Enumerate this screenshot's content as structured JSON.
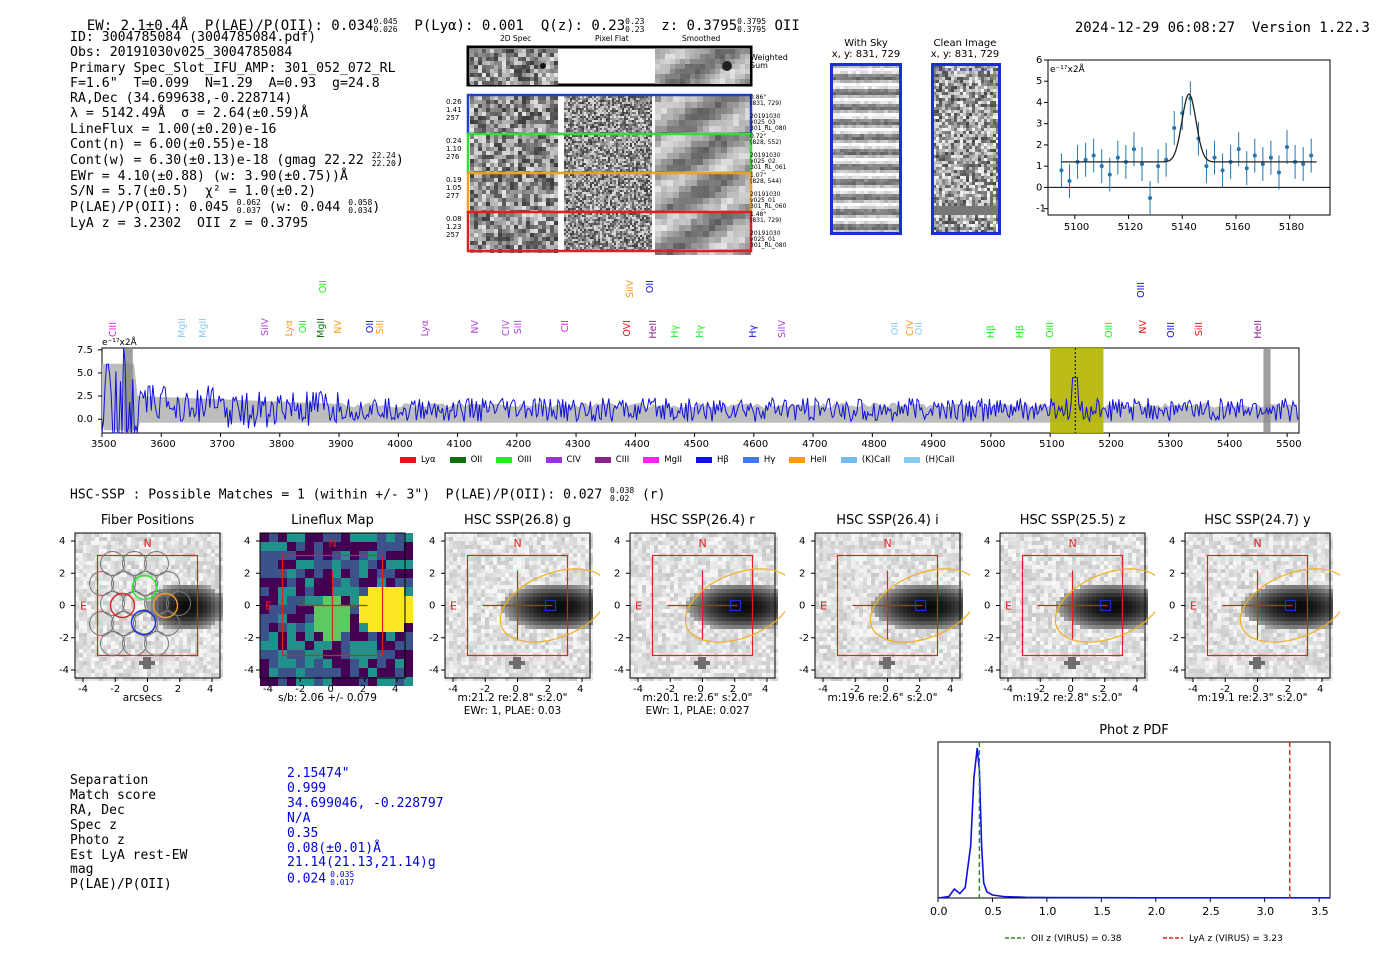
{
  "header": {
    "ew_label": "EW: 2.1±0.4Å",
    "plae_label": "P(LAE)/P(OII): 0.034",
    "plae_hi": "0.045",
    "plae_lo": "0.026",
    "plya_label": "P(Lyα): 0.001",
    "qz_label": "Q(z): 0.23",
    "qz_hi": "0.23",
    "qz_lo": "0.23",
    "z_label": "z: 0.3795",
    "z_hi": "0.3795",
    "z_lo": "0.3795",
    "z_line": "OII",
    "timestamp": "2024-12-29 06:08:27",
    "version": "Version 1.22.3"
  },
  "info": {
    "id": "ID: 3004785084 (3004785084.pdf)",
    "obs": "Obs: 20191030v025_3004785084",
    "primary": "Primary Spec_Slot_IFU_AMP: 301_052_072_RL",
    "params": "F=1.6\"  T=0.099  N=1.29  A=0.93  g=24.8",
    "radec": "RA,Dec (34.699638,-0.228714)",
    "lambda": "λ = 5142.49Å  σ = 2.64(±0.59)Å",
    "lineflux": "LineFlux = 1.00(±0.20)e-16",
    "contn": "Cont(n) = 6.00(±0.55)e-18",
    "contw": "Cont(w) = 6.30(±0.13)e-18 (gmag 22.22",
    "contw_hi": "22.24",
    "contw_lo": "22.20",
    "ewr": "EWr = 4.10(±0.88) (w: 3.90(±0.75))Å",
    "sn": "S/N = 5.7(±0.5)  χ² = 1.0(±0.2)",
    "plae": "P(LAE)/P(OII): 0.045",
    "plae_hi": "0.062",
    "plae_lo": "0.037",
    "plae_w": "(w: 0.044",
    "plae_w_hi": "0.058",
    "plae_w_lo": "0.034",
    "lya_z": "LyA z = 3.2302  OII z = 0.3795"
  },
  "cutouts": {
    "col_headers": [
      "2D Spec",
      "Pixel Flat",
      "Smoothed"
    ],
    "weighted": "Weighted Sum",
    "rows": [
      {
        "left": [
          "0.26",
          "1.41",
          "257"
        ],
        "right": [
          "0.86\"",
          "(831, 729)",
          "",
          "20191030",
          "v025_03",
          "301_RL_080"
        ],
        "color": "#1f3fd0"
      },
      {
        "left": [
          "0.24",
          "1.10",
          "276"
        ],
        "right": [
          "0.72\"",
          "(828, 552)",
          "",
          "20191030",
          "v025_02",
          "301_RL_061"
        ],
        "color": "#33dd33"
      },
      {
        "left": [
          "0.19",
          "1.05",
          "277"
        ],
        "right": [
          "1.07\"",
          "(828, 544)",
          "",
          "20191030",
          "v025_01",
          "301_RL_060"
        ],
        "color": "#f0a020"
      },
      {
        "left": [
          "0.08",
          "1.23",
          "257"
        ],
        "right": [
          "1.48\"",
          "(831, 729)",
          "",
          "20191030",
          "v025_01",
          "301_RL_080"
        ],
        "color": "#e02020"
      }
    ]
  },
  "sky": {
    "with_sky_title": "With Sky",
    "with_sky_coord": "x, y: 831, 729",
    "clean_title": "Clean Image",
    "clean_coord": "x, y: 831, 729"
  },
  "zoom_plot": {
    "unit": "e⁻¹⁷x2Å",
    "xticks": [
      "5100",
      "5120",
      "5140",
      "5160",
      "5180"
    ],
    "yticks": [
      "6",
      "5",
      "4",
      "3",
      "2",
      "1",
      "0",
      "-1"
    ]
  },
  "full_spectrum": {
    "unit": "e⁻¹⁷x2Å",
    "xticks": [
      "3500",
      "3600",
      "3700",
      "3800",
      "3900",
      "4000",
      "4100",
      "4200",
      "4300",
      "4400",
      "4500",
      "4600",
      "4700",
      "4800",
      "4900",
      "5000",
      "5100",
      "5200",
      "5300",
      "5400",
      "5500"
    ],
    "yticks": [
      "7.5",
      "5.0",
      "2.5",
      "0.0"
    ],
    "legend": [
      {
        "label": "Lyα",
        "color": "#e8101a"
      },
      {
        "label": "OII",
        "color": "#107010"
      },
      {
        "label": "OIII",
        "color": "#22ee22"
      },
      {
        "label": "CIV",
        "color": "#9933dd"
      },
      {
        "label": "CIII",
        "color": "#882288"
      },
      {
        "label": "MgII",
        "color": "#ff22ee"
      },
      {
        "label": "Hβ",
        "color": "#1010ee"
      },
      {
        "label": "Hγ",
        "color": "#4477ee"
      },
      {
        "label": "HeII",
        "color": "#ff9911"
      },
      {
        "label": "(K)CaII",
        "color": "#77bbee"
      },
      {
        "label": "(H)CaII",
        "color": "#88ccee"
      }
    ],
    "line_labels": [
      {
        "t": "CIII",
        "c": "#dd22dd",
        "x": 108,
        "y": 322
      },
      {
        "t": "MgII",
        "c": "#88ccee",
        "x": 177,
        "y": 318
      },
      {
        "t": "MgII",
        "c": "#88ccee",
        "x": 198,
        "y": 318
      },
      {
        "t": "SiIV",
        "c": "#aa44dd",
        "x": 260,
        "y": 318
      },
      {
        "t": "Lyα",
        "c": "#ff9911",
        "x": 284,
        "y": 320
      },
      {
        "t": "OII",
        "c": "#22ee22",
        "x": 298,
        "y": 320
      },
      {
        "t": "MgII",
        "c": "#107010",
        "x": 316,
        "y": 318
      },
      {
        "t": "OII",
        "c": "#22ee22",
        "x": 318,
        "y": 280
      },
      {
        "t": "NV",
        "c": "#ff9911",
        "x": 333,
        "y": 320
      },
      {
        "t": "OII",
        "c": "#1010ee",
        "x": 365,
        "y": 320
      },
      {
        "t": "SiII",
        "c": "#ff9911",
        "x": 375,
        "y": 320
      },
      {
        "t": "Lyα",
        "c": "#aa44dd",
        "x": 420,
        "y": 320
      },
      {
        "t": "NV",
        "c": "#aa44dd",
        "x": 470,
        "y": 320
      },
      {
        "t": "CIV",
        "c": "#aa44dd",
        "x": 501,
        "y": 320
      },
      {
        "t": "SiII",
        "c": "#aa44dd",
        "x": 513,
        "y": 320
      },
      {
        "t": "CII",
        "c": "#dd22dd",
        "x": 560,
        "y": 320
      },
      {
        "t": "SiIV",
        "c": "#ff9911",
        "x": 625,
        "y": 280
      },
      {
        "t": "OII",
        "c": "#1010ee",
        "x": 645,
        "y": 280
      },
      {
        "t": "OVI",
        "c": "#e8101a",
        "x": 622,
        "y": 320
      },
      {
        "t": "HeII",
        "c": "#882288",
        "x": 648,
        "y": 320
      },
      {
        "t": "Hγ",
        "c": "#22ee22",
        "x": 670,
        "y": 325
      },
      {
        "t": "Hγ",
        "c": "#22ee22",
        "x": 695,
        "y": 325
      },
      {
        "t": "Hγ",
        "c": "#1010ee",
        "x": 748,
        "y": 325
      },
      {
        "t": "SiIV",
        "c": "#aa44dd",
        "x": 777,
        "y": 320
      },
      {
        "t": "OII",
        "c": "#88ccee",
        "x": 890,
        "y": 322
      },
      {
        "t": "CIV",
        "c": "#ff9911",
        "x": 905,
        "y": 320
      },
      {
        "t": "OII",
        "c": "#88ccee",
        "x": 914,
        "y": 322
      },
      {
        "t": "Hβ",
        "c": "#22ee22",
        "x": 986,
        "y": 325
      },
      {
        "t": "Hβ",
        "c": "#22ee22",
        "x": 1015,
        "y": 325
      },
      {
        "t": "OIII",
        "c": "#22ee22",
        "x": 1045,
        "y": 322
      },
      {
        "t": "OIII",
        "c": "#22ee22",
        "x": 1104,
        "y": 322
      },
      {
        "t": "OIII",
        "c": "#1010ee",
        "x": 1136,
        "y": 282
      },
      {
        "t": "NV",
        "c": "#e8101a",
        "x": 1138,
        "y": 320
      },
      {
        "t": "OIII",
        "c": "#1010ee",
        "x": 1166,
        "y": 322
      },
      {
        "t": "SiII",
        "c": "#e8101a",
        "x": 1194,
        "y": 322
      },
      {
        "t": "HeII",
        "c": "#882288",
        "x": 1253,
        "y": 320
      }
    ]
  },
  "hsc": {
    "heading": "HSC-SSP : Possible Matches = 1 (within +/- 3\")  P(LAE)/P(OII): 0.027",
    "heading_hi": "0.038",
    "heading_lo": "0.02",
    "heading_band": "(r)",
    "panels": [
      {
        "title": "Fiber Positions",
        "caption": "arcsecs",
        "caption2": ""
      },
      {
        "title": "Lineflux Map",
        "caption": "s/b: 2.06 +/- 0.079",
        "caption2": ""
      },
      {
        "title": "HSC SSP(26.8) g",
        "caption": "m:21.2  re:2.8\"  s:2.0\"",
        "caption2": "EWr: 1, PLAE: 0.03"
      },
      {
        "title": "HSC SSP(26.4) r",
        "caption": "m:20.1  re:2.6\"  s:2.0\"",
        "caption2": "EWr: 1, PLAE: 0.027"
      },
      {
        "title": "HSC SSP(26.4) i",
        "caption": "m:19.6  re:2.6\"  s:2.0\"",
        "caption2": ""
      },
      {
        "title": "HSC SSP(25.5) z",
        "caption": "m:19.2  re:2.8\"  s:2.0\"",
        "caption2": ""
      },
      {
        "title": "HSC SSP(24.7) y",
        "caption": "m:19.1  re:2.3\"  s:2.0\"",
        "caption2": ""
      }
    ],
    "compass_n": "N",
    "compass_e": "E",
    "ticks": [
      "-4",
      "-2",
      "0",
      "2",
      "4"
    ],
    "yticks": [
      "4",
      "2",
      "0",
      "-2",
      "-4"
    ]
  },
  "match": {
    "labels": [
      "Separation",
      "Match score",
      "RA, Dec",
      "Spec z",
      "Photo z",
      "Est LyA rest-EW",
      "mag",
      "P(LAE)/P(OII)"
    ],
    "values": [
      "2.15474\"",
      "0.999",
      "34.699046, -0.228797",
      "N/A",
      "0.35",
      "0.08(±0.01)Å",
      "21.14(21.13,21.14)g",
      "0.024"
    ],
    "plae_hi": "0.035",
    "plae_lo": "0.017"
  },
  "chart_data": [
    {
      "type": "line",
      "title": "Phot z PDF",
      "xlabel": "",
      "ylabel": "",
      "xlim": [
        0.0,
        3.6
      ],
      "xticks": [
        "0.0",
        "0.5",
        "1.0",
        "1.5",
        "2.0",
        "2.5",
        "3.0",
        "3.5"
      ],
      "series": [
        {
          "name": "PDF",
          "x": [
            0.0,
            0.1,
            0.15,
            0.2,
            0.25,
            0.3,
            0.33,
            0.36,
            0.38,
            0.4,
            0.42,
            0.45,
            0.5,
            0.6,
            0.8,
            1.0,
            1.5,
            2.0,
            3.0,
            3.6
          ],
          "values": [
            0.0,
            0.01,
            0.06,
            0.03,
            0.07,
            0.35,
            0.8,
            1.0,
            0.85,
            0.35,
            0.1,
            0.04,
            0.02,
            0.01,
            0.005,
            0.003,
            0.002,
            0.001,
            0.001,
            0.001
          ]
        }
      ],
      "vlines": [
        {
          "x": 0.38,
          "label": "OII z (VIRUS) = 0.38",
          "color": "#2a8a2a"
        },
        {
          "x": 3.23,
          "label": "LyA z (VIRUS) = 3.23",
          "color": "#dd2222"
        }
      ]
    },
    {
      "type": "scatter",
      "title": "",
      "xlabel": "",
      "ylabel": "e⁻¹⁷x2Å",
      "xlim": [
        5090,
        5195
      ],
      "ylim": [
        -1.3,
        6.0
      ],
      "x": [
        5095,
        5098,
        5101,
        5104,
        5107,
        5110,
        5113,
        5116,
        5119,
        5122,
        5125,
        5128,
        5131,
        5134,
        5137,
        5140,
        5143,
        5146,
        5149,
        5152,
        5155,
        5158,
        5161,
        5164,
        5167,
        5170,
        5173,
        5176,
        5179,
        5182,
        5185,
        5188
      ],
      "values": [
        0.8,
        0.3,
        1.2,
        1.3,
        1.5,
        1.0,
        0.6,
        1.4,
        1.2,
        1.8,
        1.1,
        -0.5,
        1.0,
        1.3,
        2.8,
        3.5,
        4.2,
        2.3,
        1.0,
        1.4,
        0.8,
        1.2,
        1.8,
        0.9,
        1.5,
        1.1,
        1.4,
        0.7,
        1.9,
        1.2,
        1.1,
        1.5
      ],
      "fit": {
        "type": "gaussian",
        "center": 5142.5,
        "amplitude": 3.2,
        "sigma": 2.6,
        "baseline": 1.2
      }
    }
  ]
}
